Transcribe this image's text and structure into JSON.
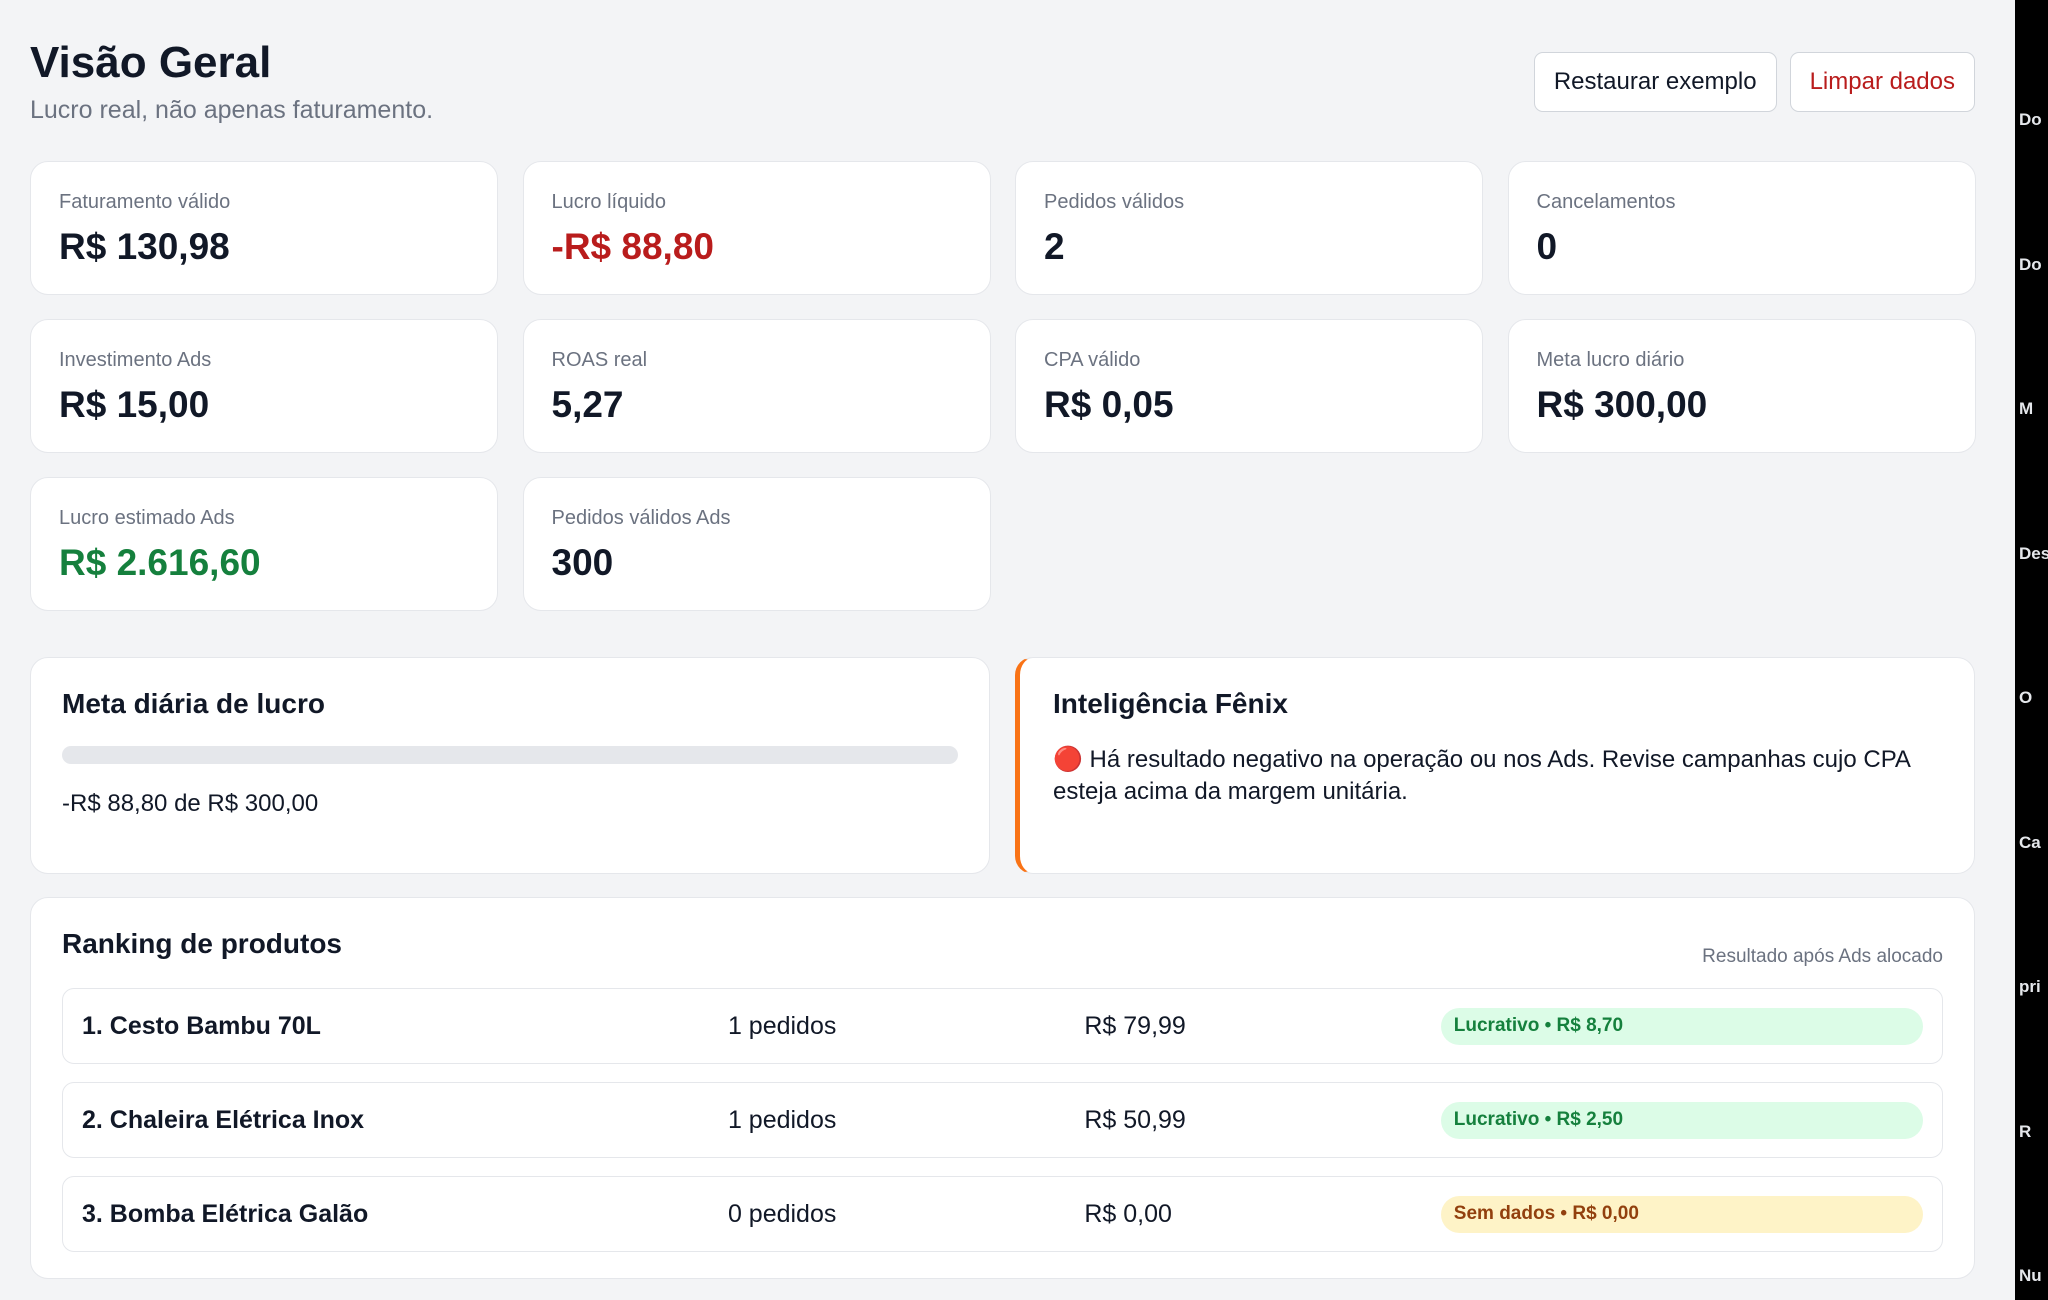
{
  "header": {
    "title": "Visão Geral",
    "subtitle": "Lucro real, não apenas faturamento.",
    "buttons": [
      {
        "label": "Restaurar exemplo",
        "color": "#111827"
      },
      {
        "label": "Limpar dados",
        "color": "#b91c1c"
      }
    ]
  },
  "metrics": [
    {
      "label": "Faturamento válido",
      "value": "R$ 130,98",
      "color": "#111827"
    },
    {
      "label": "Lucro líquido",
      "value": "-R$ 88,80",
      "color": "#b91c1c"
    },
    {
      "label": "Pedidos válidos",
      "value": "2",
      "color": "#111827"
    },
    {
      "label": "Cancelamentos",
      "value": "0",
      "color": "#111827"
    },
    {
      "label": "Investimento Ads",
      "value": "R$ 15,00",
      "color": "#111827"
    },
    {
      "label": "ROAS real",
      "value": "5,27",
      "color": "#111827"
    },
    {
      "label": "CPA válido",
      "value": "R$ 0,05",
      "color": "#111827"
    },
    {
      "label": "Meta lucro diário",
      "value": "R$ 300,00",
      "color": "#111827"
    },
    {
      "label": "Lucro estimado Ads",
      "value": "R$ 2.616,60",
      "color": "#15803d"
    },
    {
      "label": "Pedidos válidos Ads",
      "value": "300",
      "color": "#111827"
    }
  ],
  "goal": {
    "title": "Meta diária de lucro",
    "text": "-R$ 88,80 de R$ 300,00"
  },
  "insight": {
    "title": "Inteligência Fênix",
    "text": "🔴 Há resultado negativo na operação ou nos Ads. Revise campanhas cujo CPA esteja acima da margem unitária."
  },
  "ranking": {
    "title": "Ranking de produtos",
    "note": "Resultado após Ads alocado",
    "rows": [
      {
        "name": "1. Cesto Bambu 70L",
        "orders": "1 pedidos",
        "revenue": "R$ 79,99",
        "status": "Lucrativo • R$ 8,70",
        "status_color": "#15803d",
        "status_bg": "#dcfce7"
      },
      {
        "name": "2. Chaleira Elétrica Inox",
        "orders": "1 pedidos",
        "revenue": "R$ 50,99",
        "status": "Lucrativo • R$ 2,50",
        "status_color": "#15803d",
        "status_bg": "#dcfce7"
      },
      {
        "name": "3. Bomba Elétrica Galão",
        "orders": "0 pedidos",
        "revenue": "R$ 0,00",
        "status": "Sem dados • R$ 0,00",
        "status_color": "#92400e",
        "status_bg": "#fef3c7"
      }
    ]
  },
  "desktop_icons": [
    "Do",
    "Do",
    "M",
    "Des",
    "O",
    "Ca",
    "pri",
    "R",
    "Nu"
  ]
}
